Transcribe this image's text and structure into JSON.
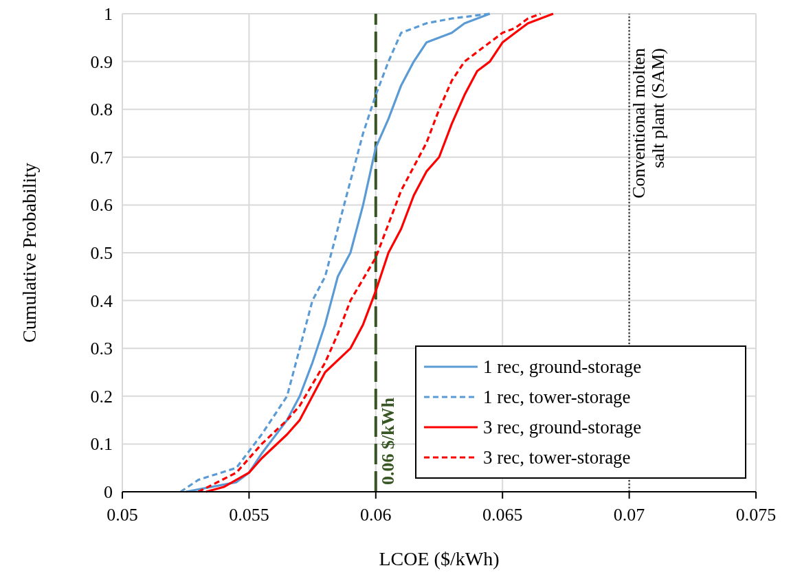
{
  "chart_data": {
    "type": "line",
    "xlabel": "LCOE ($/kWh)",
    "ylabel": "Cumulative Probability",
    "xlim": [
      0.05,
      0.075
    ],
    "xticks": [
      0.05,
      0.055,
      0.06,
      0.065,
      0.07,
      0.075
    ],
    "ylim": [
      0,
      1
    ],
    "yticks": [
      0,
      0.1,
      0.2,
      0.3,
      0.4,
      0.5,
      0.6,
      0.7,
      0.8,
      0.9,
      1
    ],
    "grid": true,
    "legend": "bottom right",
    "marker": "none",
    "series": [
      {
        "name": "1 rec, ground-storage",
        "color": "#5b9bd5",
        "line_style": "solid",
        "x": [
          0.0525,
          0.0545,
          0.055,
          0.0555,
          0.0565,
          0.057,
          0.0575,
          0.058,
          0.0585,
          0.059,
          0.0595,
          0.06,
          0.0605,
          0.061,
          0.0615,
          0.062,
          0.063,
          0.0635,
          0.0645
        ],
        "values": [
          0,
          0.02,
          0.04,
          0.08,
          0.15,
          0.2,
          0.27,
          0.35,
          0.45,
          0.5,
          0.6,
          0.72,
          0.78,
          0.85,
          0.9,
          0.94,
          0.96,
          0.98,
          1
        ]
      },
      {
        "name": "1 rec, tower-storage",
        "color": "#5b9bd5",
        "line_style": "dashed",
        "x": [
          0.0523,
          0.053,
          0.0545,
          0.0555,
          0.0565,
          0.057,
          0.0575,
          0.058,
          0.0585,
          0.059,
          0.0595,
          0.06,
          0.0605,
          0.061,
          0.062,
          0.063,
          0.0645
        ],
        "values": [
          0,
          0.025,
          0.05,
          0.12,
          0.2,
          0.3,
          0.4,
          0.45,
          0.55,
          0.65,
          0.75,
          0.83,
          0.9,
          0.96,
          0.98,
          0.99,
          1
        ]
      },
      {
        "name": "3 rec, ground-storage",
        "color": "#ff0000",
        "line_style": "solid",
        "x": [
          0.0533,
          0.054,
          0.055,
          0.0555,
          0.0565,
          0.057,
          0.0575,
          0.058,
          0.059,
          0.0595,
          0.06,
          0.0605,
          0.061,
          0.0615,
          0.062,
          0.0625,
          0.063,
          0.0635,
          0.064,
          0.0645,
          0.065,
          0.0655,
          0.066,
          0.0665,
          0.067
        ],
        "values": [
          0,
          0.01,
          0.04,
          0.07,
          0.12,
          0.15,
          0.2,
          0.25,
          0.3,
          0.35,
          0.42,
          0.5,
          0.55,
          0.62,
          0.67,
          0.7,
          0.77,
          0.83,
          0.88,
          0.9,
          0.94,
          0.96,
          0.98,
          0.99,
          1
        ]
      },
      {
        "name": "3 rec, tower-storage",
        "color": "#ff0000",
        "line_style": "dashed",
        "x": [
          0.053,
          0.0545,
          0.055,
          0.0555,
          0.0565,
          0.057,
          0.058,
          0.0585,
          0.059,
          0.06,
          0.0605,
          0.061,
          0.0615,
          0.062,
          0.0625,
          0.063,
          0.0635,
          0.064,
          0.0645,
          0.065,
          0.0655,
          0.066,
          0.0665
        ],
        "values": [
          0,
          0.04,
          0.07,
          0.1,
          0.15,
          0.18,
          0.27,
          0.33,
          0.4,
          0.49,
          0.56,
          0.63,
          0.68,
          0.73,
          0.8,
          0.86,
          0.9,
          0.92,
          0.94,
          0.96,
          0.97,
          0.99,
          1
        ]
      }
    ],
    "ref_lines": [
      {
        "axis": "x",
        "value": 0.06,
        "label": "0.06 $/kWh",
        "color": "#375623",
        "line_style": "dashed"
      },
      {
        "axis": "x",
        "value": 0.07,
        "label": "Conventional molten salt plant (SAM)",
        "color": "#404040",
        "line_style": "dotted"
      }
    ]
  }
}
